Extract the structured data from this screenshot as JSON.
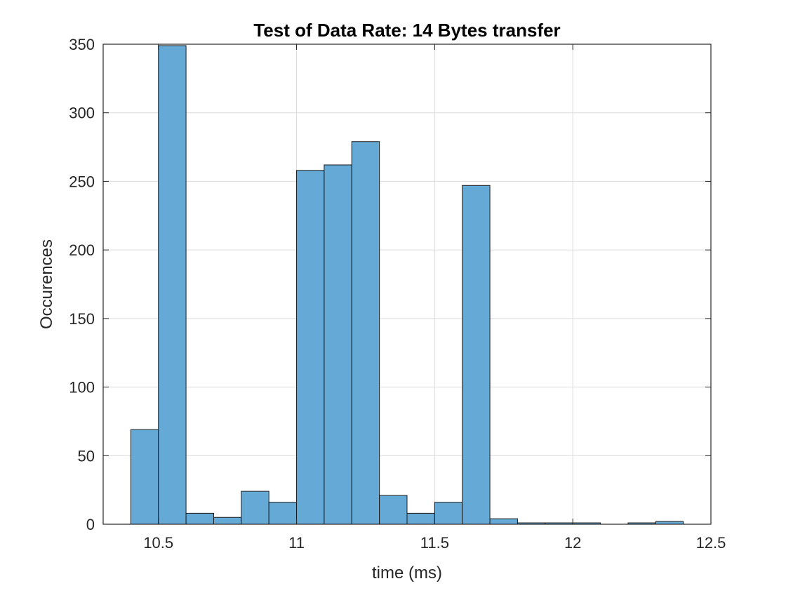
{
  "chart_data": {
    "type": "bar",
    "title": "Test of Data Rate: 14 Bytes transfer",
    "xlabel": "time (ms)",
    "ylabel": "Occurences",
    "xlim": [
      10.3,
      12.5
    ],
    "ylim": [
      0,
      350
    ],
    "xticks": [
      10.5,
      11,
      11.5,
      12,
      12.5
    ],
    "xtick_labels": [
      "10.5",
      "11",
      "11.5",
      "12",
      "12.5"
    ],
    "yticks": [
      0,
      50,
      100,
      150,
      200,
      250,
      300,
      350
    ],
    "ytick_labels": [
      "0",
      "50",
      "100",
      "150",
      "200",
      "250",
      "300",
      "350"
    ],
    "grid": true,
    "bar_color": "#65a9d7",
    "edge_color": "#1a1a1a",
    "bin_width": 0.1,
    "bin_edges": [
      10.4,
      10.5,
      10.6,
      10.7,
      10.8,
      10.9,
      11.0,
      11.1,
      11.2,
      11.3,
      11.4,
      11.5,
      11.6,
      11.7,
      11.8,
      11.9,
      12.0,
      12.1,
      12.2,
      12.3,
      12.4
    ],
    "values": [
      69,
      349,
      8,
      5,
      24,
      16,
      258,
      262,
      279,
      21,
      8,
      16,
      247,
      4,
      1,
      1,
      1,
      0,
      1,
      2
    ]
  }
}
